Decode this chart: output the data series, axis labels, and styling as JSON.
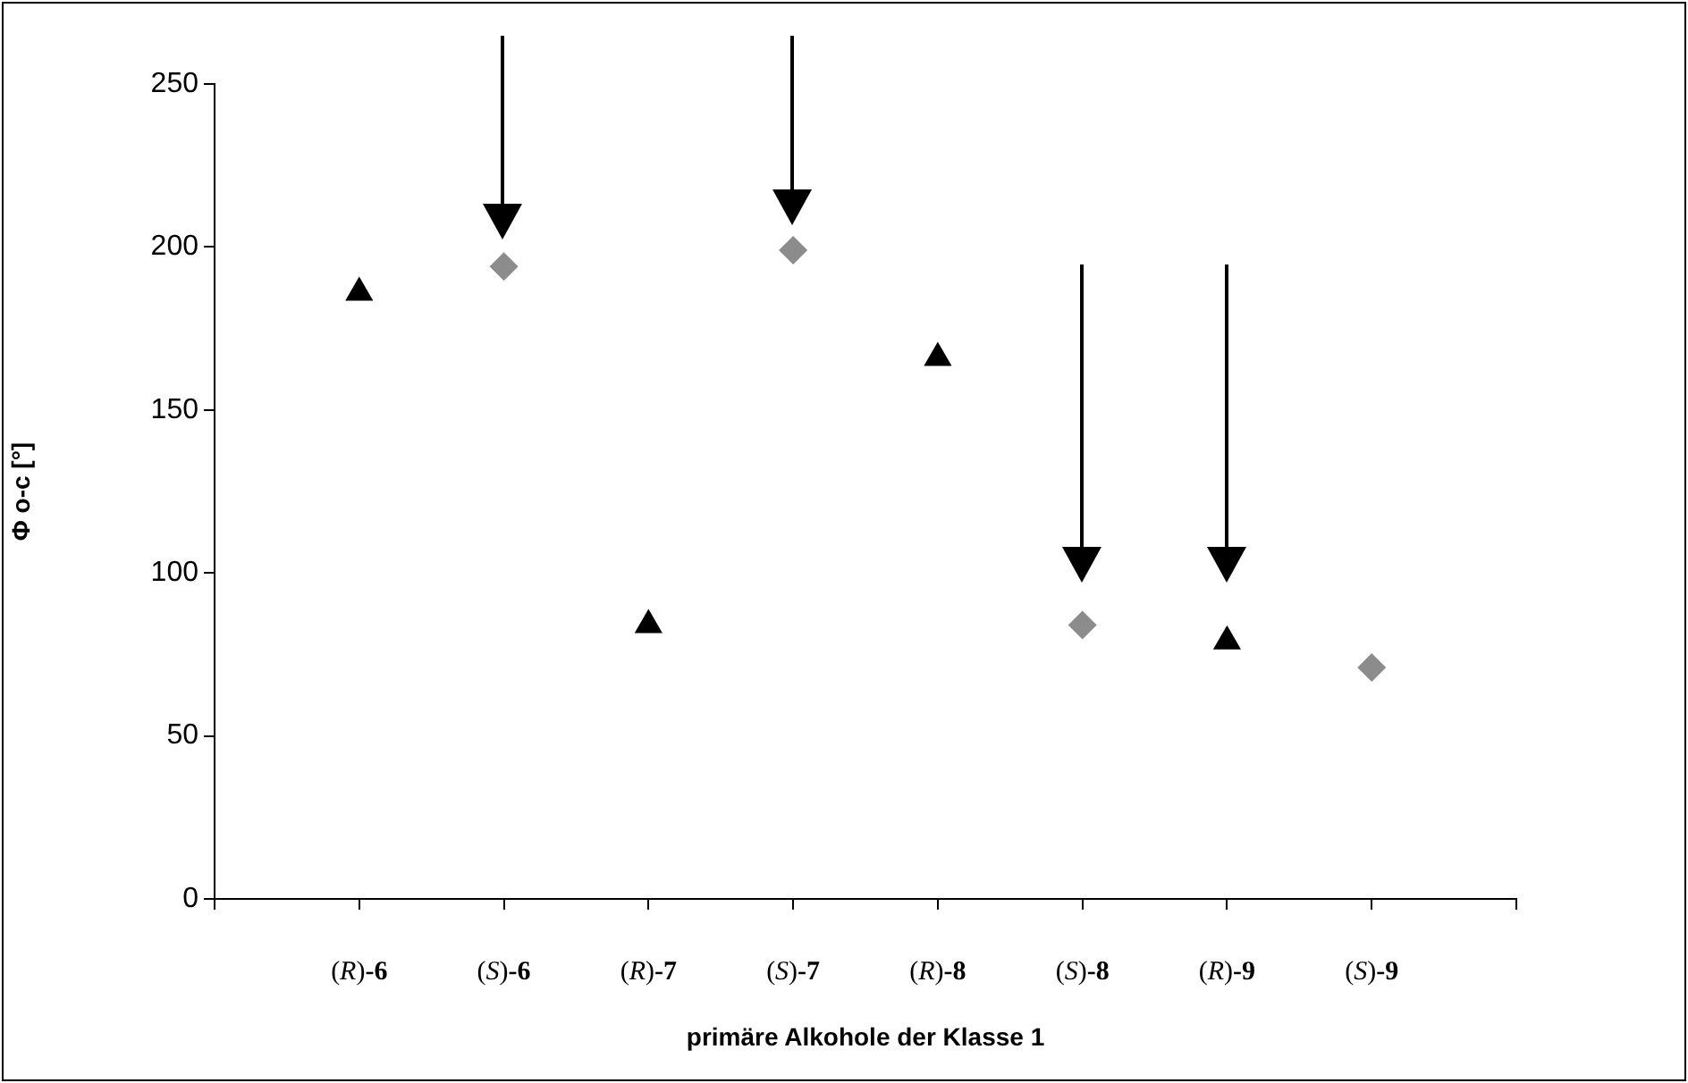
{
  "chart_data": {
    "type": "scatter",
    "xlabel": "primäre Alkohole der Klasse 1",
    "ylabel": "Φ o-c [°]",
    "categories": [
      null,
      "(R)-6",
      "(S)-6",
      "(R)-7",
      "(S)-7",
      "(R)-8",
      "(S)-8",
      "(R)-9",
      "(S)-9",
      null
    ],
    "series": [
      {
        "color": "#000000",
        "marker": "triangle",
        "values": [
          null,
          186,
          null,
          84,
          null,
          166,
          null,
          79,
          null,
          null
        ]
      },
      {
        "color": "#8c8c8c",
        "marker": "diamond",
        "values": [
          null,
          null,
          194,
          null,
          199,
          null,
          84,
          null,
          71,
          null
        ]
      }
    ],
    "ylim": [
      0,
      250
    ],
    "yticks": [
      0,
      50,
      100,
      150,
      200,
      250
    ],
    "grid": false,
    "legend": false
  }
}
